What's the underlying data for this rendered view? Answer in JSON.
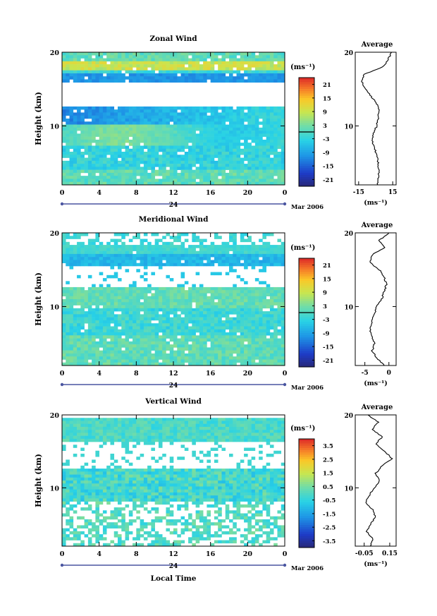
{
  "chart_data": [
    {
      "type": "heatmap",
      "title": "Zonal Wind",
      "ylabel": "Height (km)",
      "xticks": [
        "0",
        "4",
        "8",
        "12",
        "16",
        "20",
        "0"
      ],
      "yticks": [
        "10",
        "20"
      ],
      "ylim": [
        2,
        20
      ],
      "xlim": [
        0,
        24
      ],
      "date_tick": "24",
      "date_label": "Mar 2006",
      "colorbar": {
        "unit": "(ms⁻¹)",
        "ticks": [
          "21",
          "15",
          "9",
          "3",
          "-3",
          "-9",
          "-15",
          "-21"
        ],
        "range": [
          -24,
          24
        ],
        "zero_line": 0
      },
      "profile": {
        "title": "Average",
        "xticks": [
          "-15",
          "15"
        ],
        "xlim": [
          -18,
          18
        ],
        "xlabel": "(ms⁻¹)",
        "yticks": [
          "10",
          "20"
        ],
        "heights": [
          2,
          3,
          4,
          5,
          6,
          7,
          8,
          9,
          10,
          11,
          12,
          13,
          14,
          15,
          16,
          17,
          18,
          19,
          20
        ],
        "values": [
          2,
          2,
          3,
          2,
          1,
          -1,
          -3,
          -2,
          1,
          2,
          3,
          1,
          -4,
          -9,
          -12,
          -10,
          6,
          11,
          14
        ]
      }
    },
    {
      "type": "heatmap",
      "title": "Meridional Wind",
      "ylabel": "Height (km)",
      "xticks": [
        "0",
        "4",
        "8",
        "12",
        "16",
        "20",
        "0"
      ],
      "yticks": [
        "10",
        "20"
      ],
      "ylim": [
        2,
        20
      ],
      "xlim": [
        0,
        24
      ],
      "date_tick": "24",
      "date_label": "Mar 2006",
      "colorbar": {
        "unit": "(ms⁻¹)",
        "ticks": [
          "21",
          "15",
          "9",
          "3",
          "-3",
          "-9",
          "-15",
          "-21"
        ],
        "range": [
          -24,
          24
        ],
        "zero_line": 0
      },
      "profile": {
        "title": "Average",
        "xticks": [
          "-5",
          "0"
        ],
        "xlim": [
          -7,
          1.5
        ],
        "xlabel": "(ms⁻¹)",
        "yticks": [
          "10",
          "20"
        ],
        "heights": [
          2,
          3,
          4,
          5,
          6,
          7,
          8,
          9,
          10,
          11,
          12,
          13,
          14,
          15,
          16,
          17,
          18,
          19,
          20
        ],
        "values": [
          -1,
          -2.5,
          -3.5,
          -3,
          -3.5,
          -4,
          -3.5,
          -3,
          -2.5,
          -1.5,
          -1,
          -0.5,
          -1,
          -2,
          -4,
          -3.5,
          -1,
          -2,
          0
        ]
      }
    },
    {
      "type": "heatmap",
      "title": "Vertical Wind",
      "ylabel": "Height (km)",
      "xlabel": "Local Time",
      "xticks": [
        "0",
        "4",
        "8",
        "12",
        "16",
        "20",
        "0"
      ],
      "yticks": [
        "10",
        "20"
      ],
      "ylim": [
        2,
        20
      ],
      "xlim": [
        0,
        24
      ],
      "date_tick": "24",
      "date_label": "Mar 2006",
      "colorbar": {
        "unit": "(ms⁻¹)",
        "ticks": [
          "3.5",
          "2.5",
          "1.5",
          "0.5",
          "-0.5",
          "-1.5",
          "-2.5",
          "-3.5"
        ],
        "range": [
          -4,
          4
        ]
      },
      "profile": {
        "title": "Average",
        "xticks": [
          "-0.05",
          "0.15"
        ],
        "xlim": [
          -0.12,
          0.2
        ],
        "xlabel": "(ms⁻¹)",
        "yticks": [
          "10",
          "20"
        ],
        "heights": [
          2,
          3,
          4,
          5,
          6,
          7,
          8,
          9,
          10,
          11,
          12,
          13,
          14,
          15,
          16,
          17,
          18,
          19,
          20
        ],
        "values": [
          0.0,
          0.02,
          -0.03,
          0.0,
          0.04,
          0.02,
          -0.04,
          -0.01,
          0.03,
          0.07,
          0.04,
          0.09,
          0.17,
          0.11,
          0.04,
          0.09,
          0.01,
          0.06,
          -0.02
        ]
      }
    }
  ]
}
